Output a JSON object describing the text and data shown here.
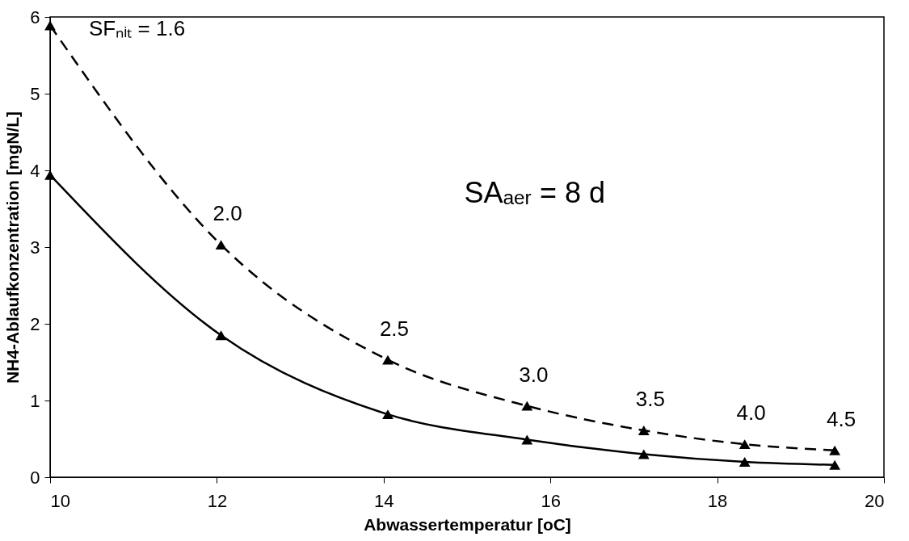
{
  "chart_data": {
    "type": "line",
    "xlabel": "Abwassertemperatur [oC]",
    "ylabel": "NH4-Ablaufkonzentration [mgN/L]",
    "x": [
      10,
      12.05,
      14.05,
      15.72,
      17.12,
      18.33,
      19.41
    ],
    "series": [
      {
        "color": "#000000",
        "line_style": "dashed",
        "values": [
          5.89,
          3.03,
          1.53,
          0.93,
          0.61,
          0.43,
          0.35
        ]
      },
      {
        "color": "#000000",
        "line_style": "solid",
        "values": [
          3.94,
          1.85,
          0.82,
          0.49,
          0.3,
          0.2,
          0.16
        ]
      }
    ],
    "marker": "triangle",
    "xlim": [
      10,
      20
    ],
    "xticks": [
      10,
      12,
      14,
      16,
      18,
      20
    ],
    "ylim": [
      0,
      6
    ],
    "yticks": [
      0,
      1,
      2,
      3,
      4,
      5,
      6
    ],
    "grid": false,
    "annotations": [
      {
        "text": "SFₙᵢₜ = 1.6",
        "x": 10,
        "y": 5.89
      },
      {
        "text": "2.0",
        "x": 12.05,
        "y": 3.03
      },
      {
        "text": "2.5",
        "x": 14.05,
        "y": 1.53
      },
      {
        "text": "3.0",
        "x": 15.72,
        "y": 0.93
      },
      {
        "text": "3.5",
        "x": 17.12,
        "y": 0.61
      },
      {
        "text": "4.0",
        "x": 18.33,
        "y": 0.43
      },
      {
        "text": "4.5",
        "x": 19.41,
        "y": 0.35
      },
      "SAₐₑᵣ = 8 d"
    ]
  }
}
